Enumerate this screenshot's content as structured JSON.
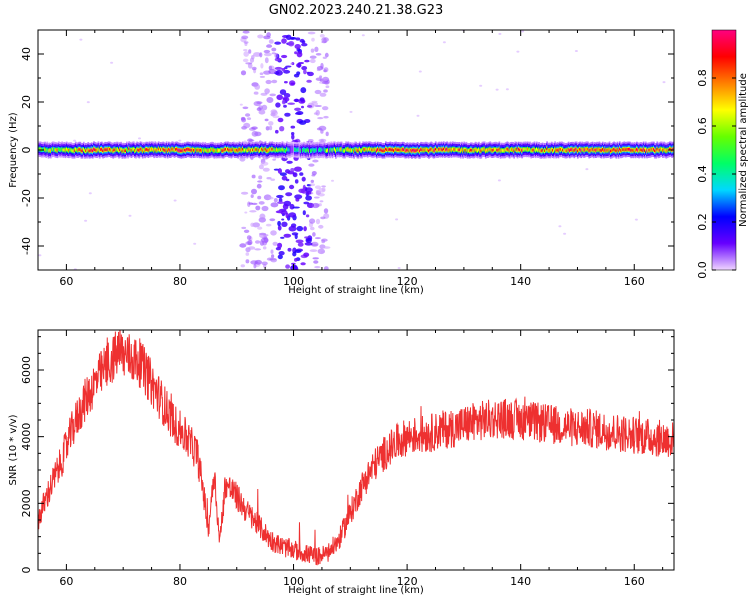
{
  "figure": {
    "title": "GN02.2023.240.21.38.G23"
  },
  "chart_data": [
    {
      "type": "heatmap",
      "xlabel": "Height of straight line (km)",
      "ylabel": "Frequency (Hz)",
      "xlim": [
        55,
        167
      ],
      "ylim": [
        -50,
        50
      ],
      "xticks": [
        60,
        80,
        100,
        120,
        140,
        160
      ],
      "yticks": [
        -40,
        -20,
        0,
        20,
        40
      ],
      "colorbar": {
        "label": "Normalized spectral amplitude",
        "range": [
          0,
          1
        ],
        "ticks": [
          0.0,
          0.2,
          0.4,
          0.6,
          0.8
        ],
        "colormap": [
          "#f0d6ff",
          "#6600ff",
          "#0000ff",
          "#00d8ff",
          "#00ff66",
          "#66ff00",
          "#ffff00",
          "#ff8000",
          "#ff0000",
          "#ff0080"
        ]
      },
      "band": {
        "center_hz": 0,
        "halfwidth_hz": 3
      },
      "scatter_region_km": [
        91,
        106
      ],
      "ridge_amplitude": [
        {
          "x": 55,
          "amp": 0.55
        },
        {
          "x": 60,
          "amp": 0.65
        },
        {
          "x": 65,
          "amp": 0.85
        },
        {
          "x": 70,
          "amp": 0.7
        },
        {
          "x": 75,
          "amp": 0.8
        },
        {
          "x": 80,
          "amp": 0.85
        },
        {
          "x": 85,
          "amp": 0.6
        },
        {
          "x": 88,
          "amp": 0.8
        },
        {
          "x": 92,
          "amp": 0.7
        },
        {
          "x": 96,
          "amp": 0.75
        },
        {
          "x": 100,
          "amp": 0.3
        },
        {
          "x": 104,
          "amp": 0.45
        },
        {
          "x": 108,
          "amp": 0.55
        },
        {
          "x": 112,
          "amp": 0.7
        },
        {
          "x": 116,
          "amp": 0.85
        },
        {
          "x": 120,
          "amp": 0.9
        },
        {
          "x": 125,
          "amp": 0.85
        },
        {
          "x": 130,
          "amp": 0.75
        },
        {
          "x": 135,
          "amp": 0.7
        },
        {
          "x": 140,
          "amp": 0.8
        },
        {
          "x": 145,
          "amp": 0.75
        },
        {
          "x": 150,
          "amp": 0.85
        },
        {
          "x": 155,
          "amp": 0.9
        },
        {
          "x": 160,
          "amp": 0.85
        },
        {
          "x": 167,
          "amp": 0.8
        }
      ]
    },
    {
      "type": "line",
      "xlabel": "Height of straight line (km)",
      "ylabel": "SNR (10 * v/v)",
      "xlim": [
        55,
        167
      ],
      "ylim": [
        0,
        7200
      ],
      "xticks": [
        60,
        80,
        100,
        120,
        140,
        160
      ],
      "yticks": [
        0,
        2000,
        4000,
        6000
      ],
      "color": "#ee3030",
      "x": [
        55,
        57,
        59,
        61,
        63,
        65,
        67,
        69,
        71,
        73,
        75,
        77,
        79,
        81,
        83,
        84,
        85,
        86,
        87,
        88,
        90,
        92,
        94,
        96,
        98,
        100,
        102,
        104,
        106,
        108,
        110,
        112,
        114,
        116,
        118,
        120,
        122,
        124,
        126,
        128,
        130,
        132,
        134,
        136,
        138,
        140,
        142,
        144,
        146,
        148,
        150,
        152,
        154,
        156,
        158,
        160,
        162,
        164,
        167
      ],
      "y": [
        1500,
        2400,
        3200,
        4200,
        5000,
        5600,
        6100,
        6500,
        6400,
        6200,
        5600,
        5000,
        4400,
        4000,
        3500,
        2500,
        1200,
        3000,
        800,
        2600,
        2200,
        1700,
        1300,
        900,
        700,
        600,
        500,
        400,
        500,
        900,
        1700,
        2500,
        3100,
        3500,
        3800,
        4000,
        4050,
        4100,
        4200,
        4250,
        4350,
        4450,
        4500,
        4550,
        4550,
        4500,
        4450,
        4400,
        4350,
        4300,
        4250,
        4250,
        4200,
        4150,
        4100,
        4050,
        4000,
        3950,
        3900
      ]
    }
  ]
}
